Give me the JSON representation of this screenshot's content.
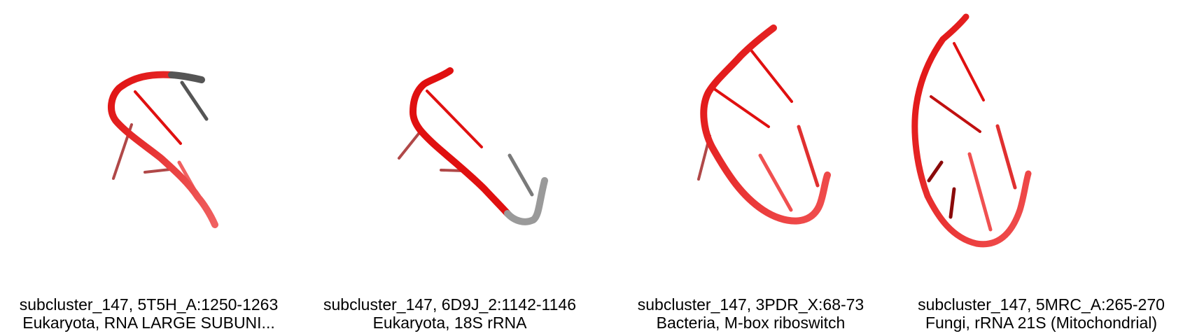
{
  "colors": {
    "backbone_red": "#e01010",
    "dark_red": "#9a0808",
    "grey": "#6f6f6f",
    "light_grey": "#b5b5b5",
    "background": "#ffffff"
  },
  "panels": [
    {
      "line1": "subcluster_147, 5T5H_A:1250-1263",
      "line2": "Eukaryota, RNA LARGE SUBUNI..."
    },
    {
      "line1": "subcluster_147, 6D9J_2:1142-1146",
      "line2": "Eukaryota, 18S rRNA"
    },
    {
      "line1": "subcluster_147, 3PDR_X:68-73",
      "line2": "Bacteria, M-box riboswitch"
    },
    {
      "line1": "subcluster_147, 5MRC_A:265-270",
      "line2": "Fungi, rRNA 21S (Mitochondrial)"
    }
  ]
}
